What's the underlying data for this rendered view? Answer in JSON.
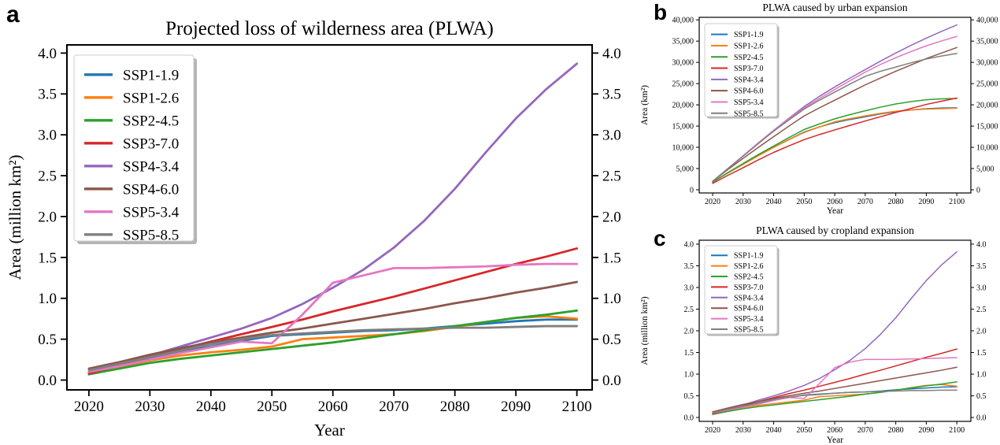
{
  "figure": {
    "background": "#ffffff",
    "panels": [
      {
        "letter": "a"
      },
      {
        "letter": "b"
      },
      {
        "letter": "c"
      }
    ]
  },
  "legend_labels": [
    "SSP1-1.9",
    "SSP1-2.6",
    "SSP2-4.5",
    "SSP3-7.0",
    "SSP4-3.4",
    "SSP4-6.0",
    "SSP5-3.4",
    "SSP5-8.5"
  ],
  "colors": {
    "SSP1-1.9": "#1f77b4",
    "SSP1-2.6": "#ff7f0e",
    "SSP2-4.5": "#2ca02c",
    "SSP3-7.0": "#d62728",
    "SSP4-3.4": "#9467bd",
    "SSP4-6.0": "#8c564b",
    "SSP5-3.4": "#e377c2",
    "SSP5-8.5": "#7f7f7f"
  },
  "chart_data": [
    {
      "id": "a",
      "type": "line",
      "title": "Projected loss of wilderness area (PLWA)",
      "xlabel": "Year",
      "ylabel": "Area (million km²)",
      "xlim": [
        2016.4,
        2102.5
      ],
      "ylim": [
        -0.12,
        4.1
      ],
      "xticks": [
        2020,
        2030,
        2040,
        2050,
        2060,
        2070,
        2080,
        2090,
        2100
      ],
      "xtick_labels": [
        "2020",
        "2030",
        "2040",
        "2050",
        "2060",
        "2070",
        "2080",
        "2090",
        "2100"
      ],
      "yticks": [
        0.0,
        0.5,
        1.0,
        1.5,
        2.0,
        2.5,
        3.0,
        3.5,
        4.0
      ],
      "ytick_labels": [
        "0.0",
        "0.5",
        "1.0",
        "1.5",
        "2.0",
        "2.5",
        "3.0",
        "3.5",
        "4.0"
      ],
      "legend_position": "upper left",
      "grid": false,
      "x": [
        2020,
        2025,
        2030,
        2035,
        2040,
        2045,
        2050,
        2055,
        2060,
        2065,
        2070,
        2075,
        2080,
        2085,
        2090,
        2095,
        2100
      ],
      "series": [
        {
          "name": "SSP1-1.9",
          "color": "#1f77b4",
          "values": [
            0.08,
            0.17,
            0.26,
            0.34,
            0.41,
            0.48,
            0.54,
            0.56,
            0.58,
            0.6,
            0.61,
            0.63,
            0.66,
            0.69,
            0.72,
            0.74,
            0.74
          ]
        },
        {
          "name": "SSP1-2.6",
          "color": "#ff7f0e",
          "values": [
            0.08,
            0.16,
            0.24,
            0.3,
            0.34,
            0.37,
            0.41,
            0.5,
            0.52,
            0.54,
            0.56,
            0.6,
            0.65,
            0.71,
            0.76,
            0.78,
            0.75
          ]
        },
        {
          "name": "SSP2-4.5",
          "color": "#2ca02c",
          "values": [
            0.07,
            0.14,
            0.21,
            0.26,
            0.3,
            0.34,
            0.38,
            0.42,
            0.46,
            0.51,
            0.56,
            0.61,
            0.66,
            0.71,
            0.76,
            0.8,
            0.85
          ]
        },
        {
          "name": "SSP3-7.0",
          "color": "#d62728",
          "values": [
            0.08,
            0.18,
            0.28,
            0.38,
            0.47,
            0.56,
            0.65,
            0.74,
            0.84,
            0.93,
            1.02,
            1.12,
            1.22,
            1.32,
            1.42,
            1.51,
            1.61
          ]
        },
        {
          "name": "SSP4-3.4",
          "color": "#9467bd",
          "values": [
            0.1,
            0.2,
            0.3,
            0.41,
            0.52,
            0.63,
            0.76,
            0.93,
            1.13,
            1.35,
            1.62,
            1.95,
            2.34,
            2.78,
            3.2,
            3.56,
            3.87
          ]
        },
        {
          "name": "SSP4-6.0",
          "color": "#8c564b",
          "values": [
            0.14,
            0.22,
            0.31,
            0.39,
            0.46,
            0.52,
            0.58,
            0.63,
            0.69,
            0.75,
            0.81,
            0.87,
            0.94,
            1.0,
            1.07,
            1.13,
            1.2
          ]
        },
        {
          "name": "SSP5-3.4",
          "color": "#e377c2",
          "values": [
            0.1,
            0.17,
            0.25,
            0.33,
            0.4,
            0.47,
            0.45,
            0.8,
            1.19,
            1.28,
            1.37,
            1.37,
            1.38,
            1.39,
            1.41,
            1.42,
            1.42
          ]
        },
        {
          "name": "SSP5-8.5",
          "color": "#7f7f7f",
          "values": [
            0.12,
            0.2,
            0.28,
            0.36,
            0.44,
            0.5,
            0.55,
            0.57,
            0.59,
            0.61,
            0.62,
            0.63,
            0.64,
            0.64,
            0.65,
            0.66,
            0.66
          ]
        }
      ]
    },
    {
      "id": "b",
      "type": "line",
      "title": "PLWA caused by urban expansion",
      "xlabel": "Year",
      "ylabel": "Area (km²)",
      "xlim": [
        2015.6,
        2104.6
      ],
      "ylim": [
        -750,
        40600
      ],
      "xticks": [
        2020,
        2030,
        2040,
        2050,
        2060,
        2070,
        2080,
        2090,
        2100
      ],
      "xtick_labels": [
        "2020",
        "2030",
        "2040",
        "2050",
        "2060",
        "2070",
        "2080",
        "2090",
        "2100"
      ],
      "yticks": [
        0,
        5000,
        10000,
        15000,
        20000,
        25000,
        30000,
        35000,
        40000
      ],
      "ytick_labels": [
        "0",
        "5,000",
        "10,000",
        "15,000",
        "20,000",
        "25,000",
        "30,000",
        "35,000",
        "40,000"
      ],
      "legend_position": "upper left",
      "grid": false,
      "x": [
        2020,
        2025,
        2030,
        2035,
        2040,
        2045,
        2050,
        2055,
        2060,
        2065,
        2070,
        2075,
        2080,
        2085,
        2090,
        2095,
        2100
      ],
      "series": [
        {
          "name": "SSP1-1.9",
          "color": "#1f77b4",
          "values": [
            1800,
            3950,
            6000,
            8050,
            10000,
            11850,
            13600,
            14800,
            15800,
            16550,
            17200,
            17850,
            18400,
            18800,
            19100,
            19250,
            19300
          ]
        },
        {
          "name": "SSP1-2.6",
          "color": "#ff7f0e",
          "values": [
            1800,
            3950,
            6000,
            8050,
            10000,
            11800,
            13500,
            14800,
            16000,
            16750,
            17400,
            18000,
            18500,
            18800,
            19000,
            19100,
            19200
          ]
        },
        {
          "name": "SSP2-4.5",
          "color": "#2ca02c",
          "values": [
            1800,
            4050,
            6200,
            8300,
            10300,
            12300,
            14200,
            15500,
            16700,
            17700,
            18600,
            19450,
            20200,
            20750,
            21200,
            21400,
            21500
          ]
        },
        {
          "name": "SSP3-7.0",
          "color": "#d62728",
          "values": [
            1500,
            3400,
            5200,
            7050,
            8800,
            10350,
            11800,
            13000,
            14100,
            15150,
            16200,
            17200,
            18200,
            19150,
            20100,
            20850,
            21600
          ]
        },
        {
          "name": "SSP4-3.4",
          "color": "#9467bd",
          "values": [
            2000,
            5000,
            8000,
            11050,
            14000,
            16850,
            19600,
            22000,
            24200,
            26300,
            28300,
            30300,
            32200,
            34000,
            35700,
            37300,
            38800
          ]
        },
        {
          "name": "SSP4-6.0",
          "color": "#8c564b",
          "values": [
            2000,
            4750,
            7400,
            10000,
            12500,
            15000,
            17400,
            19300,
            21100,
            22900,
            24700,
            26300,
            27900,
            29400,
            30900,
            32200,
            33500
          ]
        },
        {
          "name": "SSP5-3.4",
          "color": "#e377c2",
          "values": [
            2000,
            5000,
            8000,
            11050,
            14000,
            16700,
            19300,
            21500,
            23600,
            25700,
            27700,
            29500,
            31100,
            32550,
            33900,
            35050,
            36100
          ]
        },
        {
          "name": "SSP5-8.5",
          "color": "#7f7f7f",
          "values": [
            2000,
            4950,
            7900,
            10900,
            13800,
            16450,
            19000,
            21100,
            23000,
            24900,
            26700,
            27900,
            28900,
            29900,
            30800,
            31500,
            32100
          ]
        }
      ]
    },
    {
      "id": "c",
      "type": "line",
      "title": "PLWA caused by cropland expansion",
      "xlabel": "Year",
      "ylabel": "Area (million km²)",
      "xlim": [
        2015.6,
        2104.6
      ],
      "ylim": [
        -0.09,
        4.09
      ],
      "xticks": [
        2020,
        2030,
        2040,
        2050,
        2060,
        2070,
        2080,
        2090,
        2100
      ],
      "xtick_labels": [
        "2020",
        "2030",
        "2040",
        "2050",
        "2060",
        "2070",
        "2080",
        "2090",
        "2100"
      ],
      "yticks": [
        0.0,
        0.5,
        1.0,
        1.5,
        2.0,
        2.5,
        3.0,
        3.5,
        4.0
      ],
      "ytick_labels": [
        "0.0",
        "0.5",
        "1.0",
        "1.5",
        "2.0",
        "2.5",
        "3.0",
        "3.5",
        "4.0"
      ],
      "legend_position": "upper left",
      "grid": false,
      "x": [
        2020,
        2025,
        2030,
        2035,
        2040,
        2045,
        2050,
        2055,
        2060,
        2065,
        2070,
        2075,
        2080,
        2085,
        2090,
        2095,
        2100
      ],
      "series": [
        {
          "name": "SSP1-1.9",
          "color": "#1f77b4",
          "values": [
            0.08,
            0.17,
            0.25,
            0.33,
            0.4,
            0.46,
            0.52,
            0.54,
            0.56,
            0.58,
            0.59,
            0.61,
            0.64,
            0.66,
            0.68,
            0.7,
            0.71
          ]
        },
        {
          "name": "SSP1-2.6",
          "color": "#ff7f0e",
          "values": [
            0.08,
            0.16,
            0.23,
            0.28,
            0.32,
            0.36,
            0.4,
            0.48,
            0.5,
            0.52,
            0.54,
            0.58,
            0.63,
            0.69,
            0.74,
            0.76,
            0.72
          ]
        },
        {
          "name": "SSP2-4.5",
          "color": "#2ca02c",
          "values": [
            0.07,
            0.14,
            0.2,
            0.25,
            0.29,
            0.33,
            0.37,
            0.41,
            0.45,
            0.49,
            0.54,
            0.58,
            0.63,
            0.68,
            0.73,
            0.77,
            0.82
          ]
        },
        {
          "name": "SSP3-7.0",
          "color": "#d62728",
          "values": [
            0.08,
            0.18,
            0.27,
            0.37,
            0.46,
            0.55,
            0.63,
            0.72,
            0.81,
            0.9,
            1.0,
            1.09,
            1.19,
            1.29,
            1.39,
            1.48,
            1.58
          ]
        },
        {
          "name": "SSP4-3.4",
          "color": "#9467bd",
          "values": [
            0.1,
            0.2,
            0.29,
            0.4,
            0.5,
            0.61,
            0.74,
            0.9,
            1.1,
            1.32,
            1.59,
            1.92,
            2.3,
            2.74,
            3.16,
            3.52,
            3.82
          ]
        },
        {
          "name": "SSP4-6.0",
          "color": "#8c564b",
          "values": [
            0.13,
            0.22,
            0.3,
            0.37,
            0.44,
            0.5,
            0.56,
            0.61,
            0.67,
            0.73,
            0.79,
            0.85,
            0.91,
            0.97,
            1.03,
            1.09,
            1.16
          ]
        },
        {
          "name": "SSP5-3.4",
          "color": "#e377c2",
          "values": [
            0.1,
            0.17,
            0.24,
            0.31,
            0.39,
            0.46,
            0.44,
            0.78,
            1.15,
            1.28,
            1.34,
            1.34,
            1.34,
            1.35,
            1.36,
            1.37,
            1.38
          ]
        },
        {
          "name": "SSP5-8.5",
          "color": "#7f7f7f",
          "values": [
            0.11,
            0.19,
            0.26,
            0.34,
            0.42,
            0.47,
            0.51,
            0.53,
            0.56,
            0.58,
            0.59,
            0.6,
            0.61,
            0.62,
            0.62,
            0.63,
            0.63
          ]
        }
      ]
    }
  ]
}
